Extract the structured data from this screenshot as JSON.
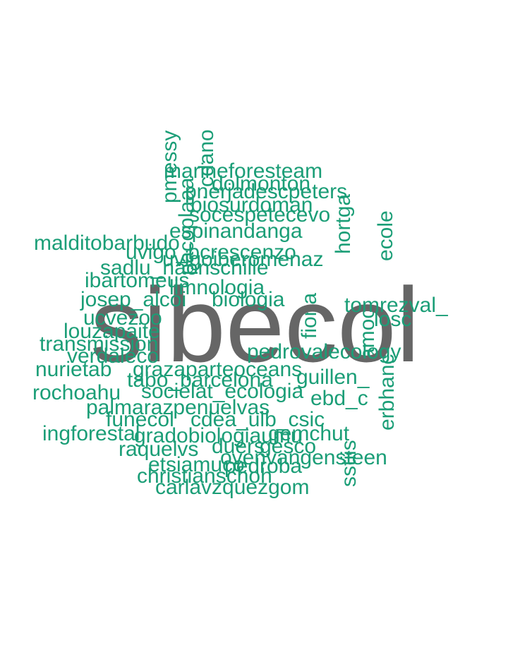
{
  "colors": {
    "main_word": "#666666",
    "words": "#1b9e77",
    "background": "#ffffff"
  },
  "words": {
    "main": "sibecol",
    "marineforesteam": "marineforesteam",
    "dolmonton": "dolmonton",
    "peters": "pnerjadescpeters",
    "biosurdoman": "biosurdoman",
    "socespetece": "socespetecevo",
    "espinandanga": "espinandanga",
    "malditobarbudo": "malditobarbudo",
    "uvigo": "uvigo_bcrescenzo",
    "uvigoiberomenaz": "uvigoiberomenaz",
    "sadlu": "sadlu_naonschille",
    "ibartomeus": "ibartomeus",
    "limnologia": "limnologia",
    "josep": "josep_alcoi",
    "biologia": "biologia",
    "tomrezval": "tomrezval_",
    "ucvezoo": "ucvezoo",
    "losc": "losc",
    "louzapaite": "louzapaite",
    "transmis": "transmission",
    "verdaleco": "verdaleco",
    "pedrovalecology": "pedrovalecology",
    "nurietab": "nurietab",
    "oceans": "grazaparteoceans",
    "tabo": "tabo_barcelona",
    "rochoahu": "rochoahu",
    "ecologia": "socielat_ecologia",
    "palmar": "palmarazpenuelvas",
    "funecol": "funecol",
    "ulb": "cdea_ulb_csic",
    "ingforestal": "ingforestal",
    "gradobiolog": "gradobiologiaumu",
    "gemchut": "gemchut",
    "raquelvs": "raquelvs",
    "duers": "duers",
    "gesco": "gesco",
    "vrensteen": "ovenvangensteen",
    "etsiam": "etsiamuco",
    "pedroba": "pedroba",
    "christianschoh": "christianschoh",
    "carlavzquez": "carlavzquezgom",
    "pacoplaaa": "pacoplaaa",
    "pmessy": "pmessy",
    "cdano": "cdano",
    "ecole": "ecole",
    "hortga": "hortga",
    "erbhanc": "erbhanc",
    "sstiis": "sstiis",
    "fiona": "fiona",
    "amoc": "amoc",
    "guillen": "guillen_",
    "ebd": "ebd_c"
  }
}
